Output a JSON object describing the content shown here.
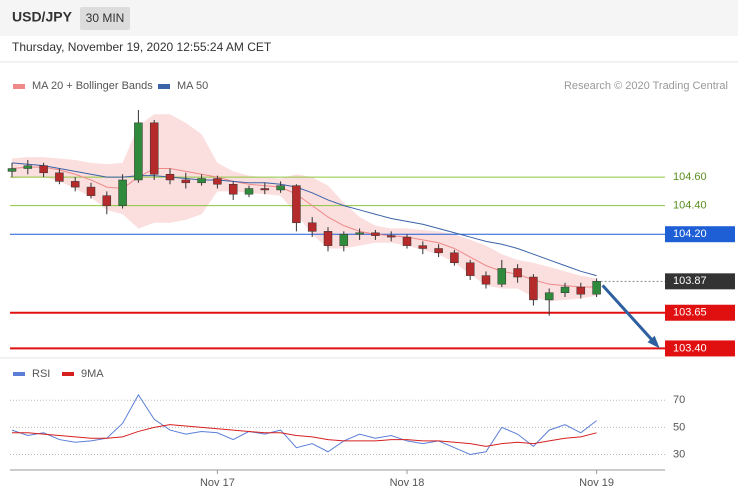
{
  "header": {
    "symbol": "USD/JPY",
    "timeframe": "30 MIN",
    "date": "Thursday, November 19, 2020 12:55:24 AM CET",
    "credit": "Research © 2020 Trading Central"
  },
  "chart_data": [
    {
      "type": "candlestick",
      "categories": [
        null,
        null,
        null,
        null,
        null,
        null,
        null,
        null,
        null,
        null,
        null,
        null,
        null,
        "Nov 17",
        null,
        null,
        null,
        null,
        null,
        null,
        null,
        null,
        null,
        null,
        null,
        "Nov 18",
        null,
        null,
        null,
        null,
        null,
        null,
        null,
        null,
        null,
        null,
        null,
        "Nov 19"
      ],
      "open": [
        104.64,
        104.66,
        104.68,
        104.63,
        104.57,
        104.53,
        104.47,
        104.4,
        104.58,
        104.98,
        104.62,
        104.58,
        104.56,
        104.59,
        104.55,
        104.48,
        104.52,
        104.51,
        104.54,
        104.28,
        104.22,
        104.12,
        104.2,
        104.21,
        104.19,
        104.18,
        104.12,
        104.1,
        104.07,
        104.0,
        103.91,
        103.85,
        103.96,
        103.9,
        103.74,
        103.79,
        103.83,
        103.78
      ],
      "high": [
        104.7,
        104.72,
        104.7,
        104.66,
        104.6,
        104.56,
        104.5,
        104.62,
        105.07,
        105.0,
        104.66,
        104.63,
        104.62,
        104.61,
        104.57,
        104.54,
        104.56,
        104.57,
        104.55,
        104.32,
        104.25,
        104.22,
        104.24,
        104.23,
        104.22,
        104.2,
        104.15,
        104.13,
        104.09,
        104.02,
        103.94,
        104.02,
        103.99,
        103.92,
        103.82,
        103.86,
        103.86,
        103.89
      ],
      "low": [
        104.6,
        104.62,
        104.6,
        104.55,
        104.5,
        104.45,
        104.34,
        104.38,
        104.56,
        104.58,
        104.55,
        104.52,
        104.54,
        104.52,
        104.44,
        104.46,
        104.48,
        104.49,
        104.22,
        104.18,
        104.08,
        104.08,
        104.16,
        104.16,
        104.15,
        104.1,
        104.06,
        104.04,
        103.98,
        103.88,
        103.82,
        103.83,
        103.86,
        103.7,
        103.63,
        103.76,
        103.75,
        103.76
      ],
      "close": [
        104.66,
        104.68,
        104.63,
        104.57,
        104.53,
        104.47,
        104.4,
        104.58,
        104.98,
        104.62,
        104.58,
        104.56,
        104.59,
        104.55,
        104.48,
        104.52,
        104.51,
        104.54,
        104.28,
        104.22,
        104.12,
        104.2,
        104.21,
        104.19,
        104.18,
        104.12,
        104.1,
        104.07,
        104.0,
        103.91,
        103.85,
        103.96,
        103.9,
        103.74,
        103.79,
        103.83,
        103.78,
        103.87
      ],
      "up_color": "#2f8a3c",
      "down_color": "#b52a2a",
      "series": [
        {
          "name": "MA 20 + Bollinger Bands",
          "color": "#f08a8a",
          "values": [
            104.66,
            104.67,
            104.67,
            104.65,
            104.62,
            104.58,
            104.53,
            104.52,
            104.6,
            104.66,
            104.66,
            104.64,
            104.62,
            104.6,
            104.57,
            104.55,
            104.54,
            104.53,
            104.48,
            104.4,
            104.32,
            104.26,
            104.22,
            104.2,
            104.19,
            104.18,
            104.16,
            104.14,
            104.1,
            104.04,
            103.98,
            103.94,
            103.92,
            103.88,
            103.85,
            103.84,
            103.83,
            103.83
          ],
          "upper": [
            104.73,
            104.74,
            104.74,
            104.73,
            104.72,
            104.7,
            104.69,
            104.7,
            104.96,
            105.04,
            105.04,
            104.98,
            104.9,
            104.7,
            104.64,
            104.61,
            104.6,
            104.59,
            104.62,
            104.6,
            104.54,
            104.42,
            104.32,
            104.26,
            104.24,
            104.24,
            104.23,
            104.22,
            104.2,
            104.16,
            104.12,
            104.06,
            104.02,
            104.0,
            103.97,
            103.94,
            103.91,
            103.89
          ],
          "lower": [
            104.59,
            104.6,
            104.6,
            104.57,
            104.52,
            104.46,
            104.37,
            104.34,
            104.24,
            104.28,
            104.28,
            104.3,
            104.34,
            104.5,
            104.5,
            104.49,
            104.48,
            104.47,
            104.34,
            104.2,
            104.1,
            104.1,
            104.12,
            104.14,
            104.14,
            104.12,
            104.09,
            104.06,
            104.0,
            103.92,
            103.84,
            103.82,
            103.82,
            103.76,
            103.73,
            103.74,
            103.75,
            103.77
          ]
        },
        {
          "name": "MA 50",
          "color": "#3b63a8",
          "values": [
            104.7,
            104.69,
            104.68,
            104.66,
            104.64,
            104.62,
            104.6,
            104.6,
            104.61,
            104.61,
            104.6,
            104.59,
            104.58,
            104.58,
            104.57,
            104.56,
            104.56,
            104.55,
            104.53,
            104.49,
            104.44,
            104.4,
            104.37,
            104.34,
            104.31,
            104.29,
            104.27,
            104.24,
            104.21,
            104.18,
            104.15,
            104.13,
            104.1,
            104.06,
            104.02,
            103.98,
            103.94,
            103.91
          ]
        }
      ],
      "levels": [
        {
          "value": 104.6,
          "label": "104.60",
          "color": "#8dc63f",
          "style": "thin",
          "box": false
        },
        {
          "value": 104.4,
          "label": "104.40",
          "color": "#8dc63f",
          "style": "thin",
          "box": false
        },
        {
          "value": 104.2,
          "label": "104.20",
          "color": "#1f5fd6",
          "style": "thin",
          "box": true
        },
        {
          "value": 103.87,
          "label": "103.87",
          "color": "#333333",
          "style": "dotted",
          "box": true
        },
        {
          "value": 103.65,
          "label": "103.65",
          "color": "#e01010",
          "style": "thick",
          "box": true
        },
        {
          "value": 103.4,
          "label": "103.40",
          "color": "#e01010",
          "style": "thick",
          "box": true
        }
      ],
      "ylim": [
        103.34,
        105.14
      ]
    },
    {
      "type": "line",
      "categories": [
        null,
        null,
        null,
        null,
        null,
        null,
        null,
        null,
        null,
        null,
        null,
        null,
        null,
        "Nov 17",
        null,
        null,
        null,
        null,
        null,
        null,
        null,
        null,
        null,
        null,
        null,
        "Nov 18",
        null,
        null,
        null,
        null,
        null,
        null,
        null,
        null,
        null,
        null,
        null,
        "Nov 19"
      ],
      "series": [
        {
          "name": "RSI",
          "color": "#5b7fd6",
          "values": [
            48,
            44,
            46,
            41,
            39,
            40,
            42,
            53,
            74,
            56,
            48,
            45,
            47,
            46,
            41,
            47,
            45,
            48,
            35,
            38,
            32,
            40,
            45,
            42,
            44,
            40,
            38,
            40,
            35,
            30,
            32,
            50,
            45,
            36,
            48,
            52,
            46,
            55
          ]
        },
        {
          "name": "9MA",
          "color": "#d62020",
          "values": [
            46,
            46,
            45,
            44,
            43,
            42,
            42,
            43,
            47,
            50,
            52,
            51,
            50,
            49,
            48,
            47,
            46,
            46,
            44,
            43,
            41,
            40,
            40,
            40,
            41,
            41,
            40,
            40,
            39,
            38,
            36,
            38,
            39,
            38,
            40,
            42,
            43,
            46
          ]
        }
      ],
      "ylim": [
        20,
        85
      ],
      "yticks": [
        70,
        50,
        30
      ],
      "grid": true
    }
  ]
}
